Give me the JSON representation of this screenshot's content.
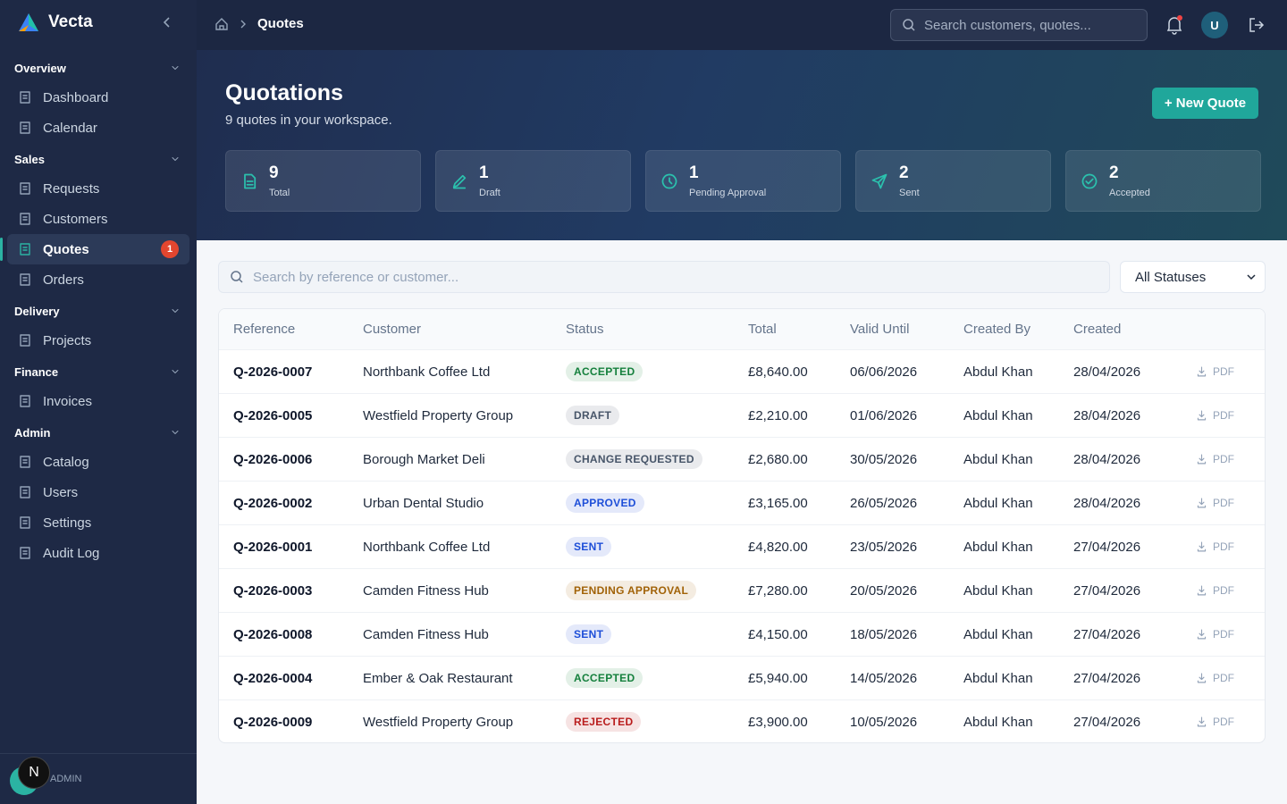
{
  "app": {
    "name": "Vecta"
  },
  "sidebar": {
    "sections": [
      {
        "title": "Overview",
        "items": [
          {
            "label": "Dashboard"
          },
          {
            "label": "Calendar"
          }
        ]
      },
      {
        "title": "Sales",
        "items": [
          {
            "label": "Requests"
          },
          {
            "label": "Customers"
          },
          {
            "label": "Quotes",
            "badge": 1,
            "active": true
          },
          {
            "label": "Orders"
          }
        ]
      },
      {
        "title": "Delivery",
        "items": [
          {
            "label": "Projects"
          }
        ]
      },
      {
        "title": "Finance",
        "items": [
          {
            "label": "Invoices"
          }
        ]
      },
      {
        "title": "Admin",
        "items": [
          {
            "label": "Catalog"
          },
          {
            "label": "Users"
          },
          {
            "label": "Settings"
          },
          {
            "label": "Audit Log"
          }
        ]
      }
    ],
    "user_role": "ADMIN",
    "avatar_initial": "N"
  },
  "topbar": {
    "breadcrumb": "Quotes",
    "search_placeholder": "Search customers, quotes...",
    "user_initial": "U"
  },
  "header": {
    "title": "Quotations",
    "subtitle": "9 quotes in your workspace.",
    "new_button": "+ New Quote"
  },
  "stats": [
    {
      "value": 9,
      "label": "Total"
    },
    {
      "value": 1,
      "label": "Draft"
    },
    {
      "value": 1,
      "label": "Pending Approval"
    },
    {
      "value": 2,
      "label": "Sent"
    },
    {
      "value": 2,
      "label": "Accepted"
    }
  ],
  "filters": {
    "search_placeholder": "Search by reference or customer...",
    "status_select": "All Statuses"
  },
  "table": {
    "columns": [
      "Reference",
      "Customer",
      "Status",
      "Total",
      "Valid Until",
      "Created By",
      "Created"
    ],
    "action_label": "PDF",
    "rows": [
      {
        "reference": "Q-2026-0007",
        "customer": "Northbank Coffee Ltd",
        "status": "ACCEPTED",
        "status_color": "#15803d",
        "total": "£8,640.00",
        "valid_until": "06/06/2026",
        "created_by": "Abdul Khan",
        "created": "28/04/2026"
      },
      {
        "reference": "Q-2026-0005",
        "customer": "Westfield Property Group",
        "status": "DRAFT",
        "status_color": "#475569",
        "total": "£2,210.00",
        "valid_until": "01/06/2026",
        "created_by": "Abdul Khan",
        "created": "28/04/2026"
      },
      {
        "reference": "Q-2026-0006",
        "customer": "Borough Market Deli",
        "status": "CHANGE REQUESTED",
        "status_color": "#475569",
        "total": "£2,680.00",
        "valid_until": "30/05/2026",
        "created_by": "Abdul Khan",
        "created": "28/04/2026"
      },
      {
        "reference": "Q-2026-0002",
        "customer": "Urban Dental Studio",
        "status": "APPROVED",
        "status_color": "#1d4ed8",
        "total": "£3,165.00",
        "valid_until": "26/05/2026",
        "created_by": "Abdul Khan",
        "created": "28/04/2026"
      },
      {
        "reference": "Q-2026-0001",
        "customer": "Northbank Coffee Ltd",
        "status": "SENT",
        "status_color": "#1d4ed8",
        "total": "£4,820.00",
        "valid_until": "23/05/2026",
        "created_by": "Abdul Khan",
        "created": "27/04/2026"
      },
      {
        "reference": "Q-2026-0003",
        "customer": "Camden Fitness Hub",
        "status": "PENDING APPROVAL",
        "status_color": "#a16207",
        "total": "£7,280.00",
        "valid_until": "20/05/2026",
        "created_by": "Abdul Khan",
        "created": "27/04/2026"
      },
      {
        "reference": "Q-2026-0008",
        "customer": "Camden Fitness Hub",
        "status": "SENT",
        "status_color": "#1d4ed8",
        "total": "£4,150.00",
        "valid_until": "18/05/2026",
        "created_by": "Abdul Khan",
        "created": "27/04/2026"
      },
      {
        "reference": "Q-2026-0004",
        "customer": "Ember & Oak Restaurant",
        "status": "ACCEPTED",
        "status_color": "#15803d",
        "total": "£5,940.00",
        "valid_until": "14/05/2026",
        "created_by": "Abdul Khan",
        "created": "27/04/2026"
      },
      {
        "reference": "Q-2026-0009",
        "customer": "Westfield Property Group",
        "status": "REJECTED",
        "status_color": "#b91c1c",
        "total": "£3,900.00",
        "valid_until": "10/05/2026",
        "created_by": "Abdul Khan",
        "created": "27/04/2026"
      }
    ]
  }
}
